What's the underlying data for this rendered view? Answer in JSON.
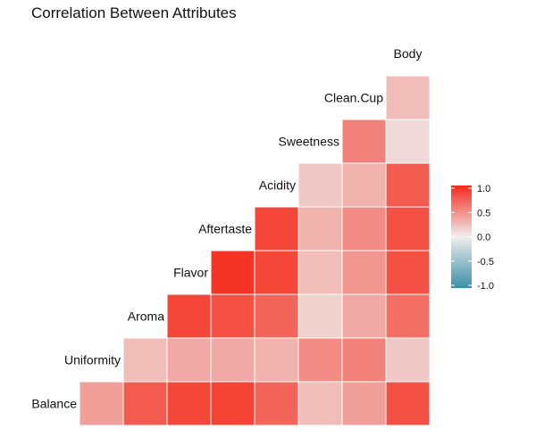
{
  "chart_data": {
    "type": "heatmap",
    "title": "Correlation Between Attributes",
    "variables": [
      "Balance",
      "Uniformity",
      "Aroma",
      "Flavor",
      "Aftertaste",
      "Acidity",
      "Sweetness",
      "Clean.Cup",
      "Body"
    ],
    "matrix": [
      [
        null,
        0.4,
        0.75,
        0.85,
        0.88,
        0.7,
        0.25,
        0.4,
        0.8
      ],
      [
        null,
        null,
        0.25,
        0.35,
        0.35,
        0.3,
        0.5,
        0.55,
        0.2
      ],
      [
        null,
        null,
        null,
        0.85,
        0.8,
        0.7,
        0.15,
        0.35,
        0.65
      ],
      [
        null,
        null,
        null,
        null,
        0.95,
        0.85,
        0.25,
        0.45,
        0.8
      ],
      [
        null,
        null,
        null,
        null,
        null,
        0.85,
        0.3,
        0.5,
        0.8
      ],
      [
        null,
        null,
        null,
        null,
        null,
        null,
        0.2,
        0.3,
        0.75
      ],
      [
        null,
        null,
        null,
        null,
        null,
        null,
        null,
        0.55,
        0.1
      ],
      [
        null,
        null,
        null,
        null,
        null,
        null,
        null,
        null,
        0.25
      ]
    ],
    "color_scale": {
      "low": "#3a8fa8",
      "mid": "#eeeeee",
      "high": "#f52a1a",
      "limits": [
        -1,
        1
      ]
    },
    "legend": {
      "position": "right",
      "ticks": [
        "1.0",
        "0.5",
        "0.0",
        "-0.5",
        "-1.0"
      ]
    }
  }
}
